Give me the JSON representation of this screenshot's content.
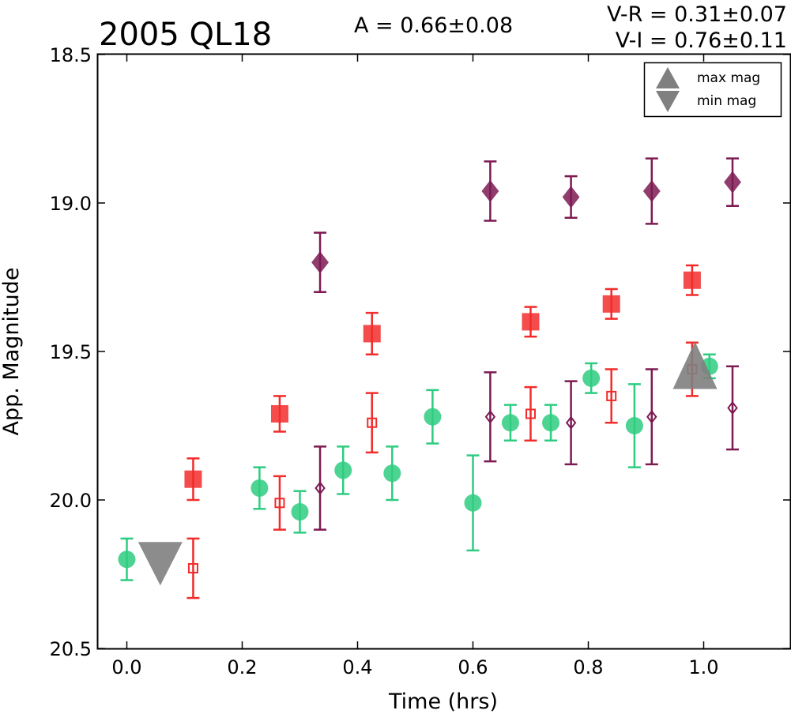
{
  "chart_data": {
    "type": "scatter",
    "title": "2005 QL18",
    "annotations": {
      "amplitude": "A  = 0.66±0.08",
      "v_minus_r": "V-R = 0.31±0.07",
      "v_minus_i": "V-I  = 0.76±0.11"
    },
    "xlabel": "Time (hrs)",
    "ylabel": "App. Magnitude",
    "xlim": [
      -0.05,
      1.15
    ],
    "ylim": [
      20.5,
      18.5
    ],
    "y_inverted": true,
    "xticks": [
      "0.0",
      "0.2",
      "0.4",
      "0.6",
      "0.8",
      "1.0"
    ],
    "yticks": [
      "18.5",
      "19.0",
      "19.5",
      "20.0",
      "20.5"
    ],
    "grid": false,
    "legend": {
      "position": "top-right",
      "entries": [
        {
          "label": "max mag",
          "marker": "triangle-up",
          "color": "#808080"
        },
        {
          "label": "min mag",
          "marker": "triangle-down",
          "color": "#808080"
        }
      ]
    },
    "series": [
      {
        "color": "#2ecc80",
        "marker": "circle",
        "filled": true,
        "points": [
          {
            "x": 0.0,
            "y": 20.2,
            "err": 0.07
          },
          {
            "x": 0.23,
            "y": 19.96,
            "err": 0.07
          },
          {
            "x": 0.3,
            "y": 20.04,
            "err": 0.07
          },
          {
            "x": 0.375,
            "y": 19.9,
            "err": 0.08
          },
          {
            "x": 0.46,
            "y": 19.91,
            "err": 0.09
          },
          {
            "x": 0.53,
            "y": 19.72,
            "err": 0.09
          },
          {
            "x": 0.6,
            "y": 20.01,
            "err": 0.16
          },
          {
            "x": 0.665,
            "y": 19.74,
            "err": 0.06
          },
          {
            "x": 0.735,
            "y": 19.74,
            "err": 0.06
          },
          {
            "x": 0.805,
            "y": 19.59,
            "err": 0.05
          },
          {
            "x": 0.88,
            "y": 19.75,
            "err": 0.14
          },
          {
            "x": 1.01,
            "y": 19.55,
            "err": 0.04
          }
        ]
      },
      {
        "color": "#f22b2b",
        "marker": "square",
        "filled": true,
        "points": [
          {
            "x": 0.115,
            "y": 19.93,
            "err": 0.07
          },
          {
            "x": 0.265,
            "y": 19.71,
            "err": 0.06
          },
          {
            "x": 0.425,
            "y": 19.44,
            "err": 0.07
          },
          {
            "x": 0.7,
            "y": 19.4,
            "err": 0.05
          },
          {
            "x": 0.84,
            "y": 19.34,
            "err": 0.05
          },
          {
            "x": 0.98,
            "y": 19.26,
            "err": 0.05
          }
        ]
      },
      {
        "color": "#f22b2b",
        "marker": "square",
        "filled": false,
        "points": [
          {
            "x": 0.115,
            "y": 20.23,
            "err": 0.1
          },
          {
            "x": 0.265,
            "y": 20.01,
            "err": 0.09
          },
          {
            "x": 0.425,
            "y": 19.74,
            "err": 0.1
          },
          {
            "x": 0.7,
            "y": 19.71,
            "err": 0.09
          },
          {
            "x": 0.84,
            "y": 19.65,
            "err": 0.09
          },
          {
            "x": 0.98,
            "y": 19.56,
            "err": 0.09
          }
        ]
      },
      {
        "color": "#7d1a52",
        "marker": "diamond",
        "filled": true,
        "points": [
          {
            "x": 0.335,
            "y": 19.2,
            "err": 0.1
          },
          {
            "x": 0.63,
            "y": 18.96,
            "err": 0.1
          },
          {
            "x": 0.77,
            "y": 18.98,
            "err": 0.07
          },
          {
            "x": 0.91,
            "y": 18.96,
            "err": 0.11
          },
          {
            "x": 1.05,
            "y": 18.93,
            "err": 0.08
          }
        ]
      },
      {
        "color": "#7d1a52",
        "marker": "diamond",
        "filled": false,
        "points": [
          {
            "x": 0.335,
            "y": 19.96,
            "err": 0.14
          },
          {
            "x": 0.63,
            "y": 19.72,
            "err": 0.15
          },
          {
            "x": 0.77,
            "y": 19.74,
            "err": 0.14
          },
          {
            "x": 0.91,
            "y": 19.72,
            "err": 0.16
          },
          {
            "x": 1.05,
            "y": 19.69,
            "err": 0.14
          }
        ]
      }
    ],
    "extremes": [
      {
        "kind": "min mag",
        "marker": "triangle-down",
        "x": 0.058,
        "y": 20.2,
        "color": "#808080"
      },
      {
        "kind": "max mag",
        "marker": "triangle-up",
        "x": 0.985,
        "y": 19.56,
        "color": "#808080"
      }
    ]
  }
}
